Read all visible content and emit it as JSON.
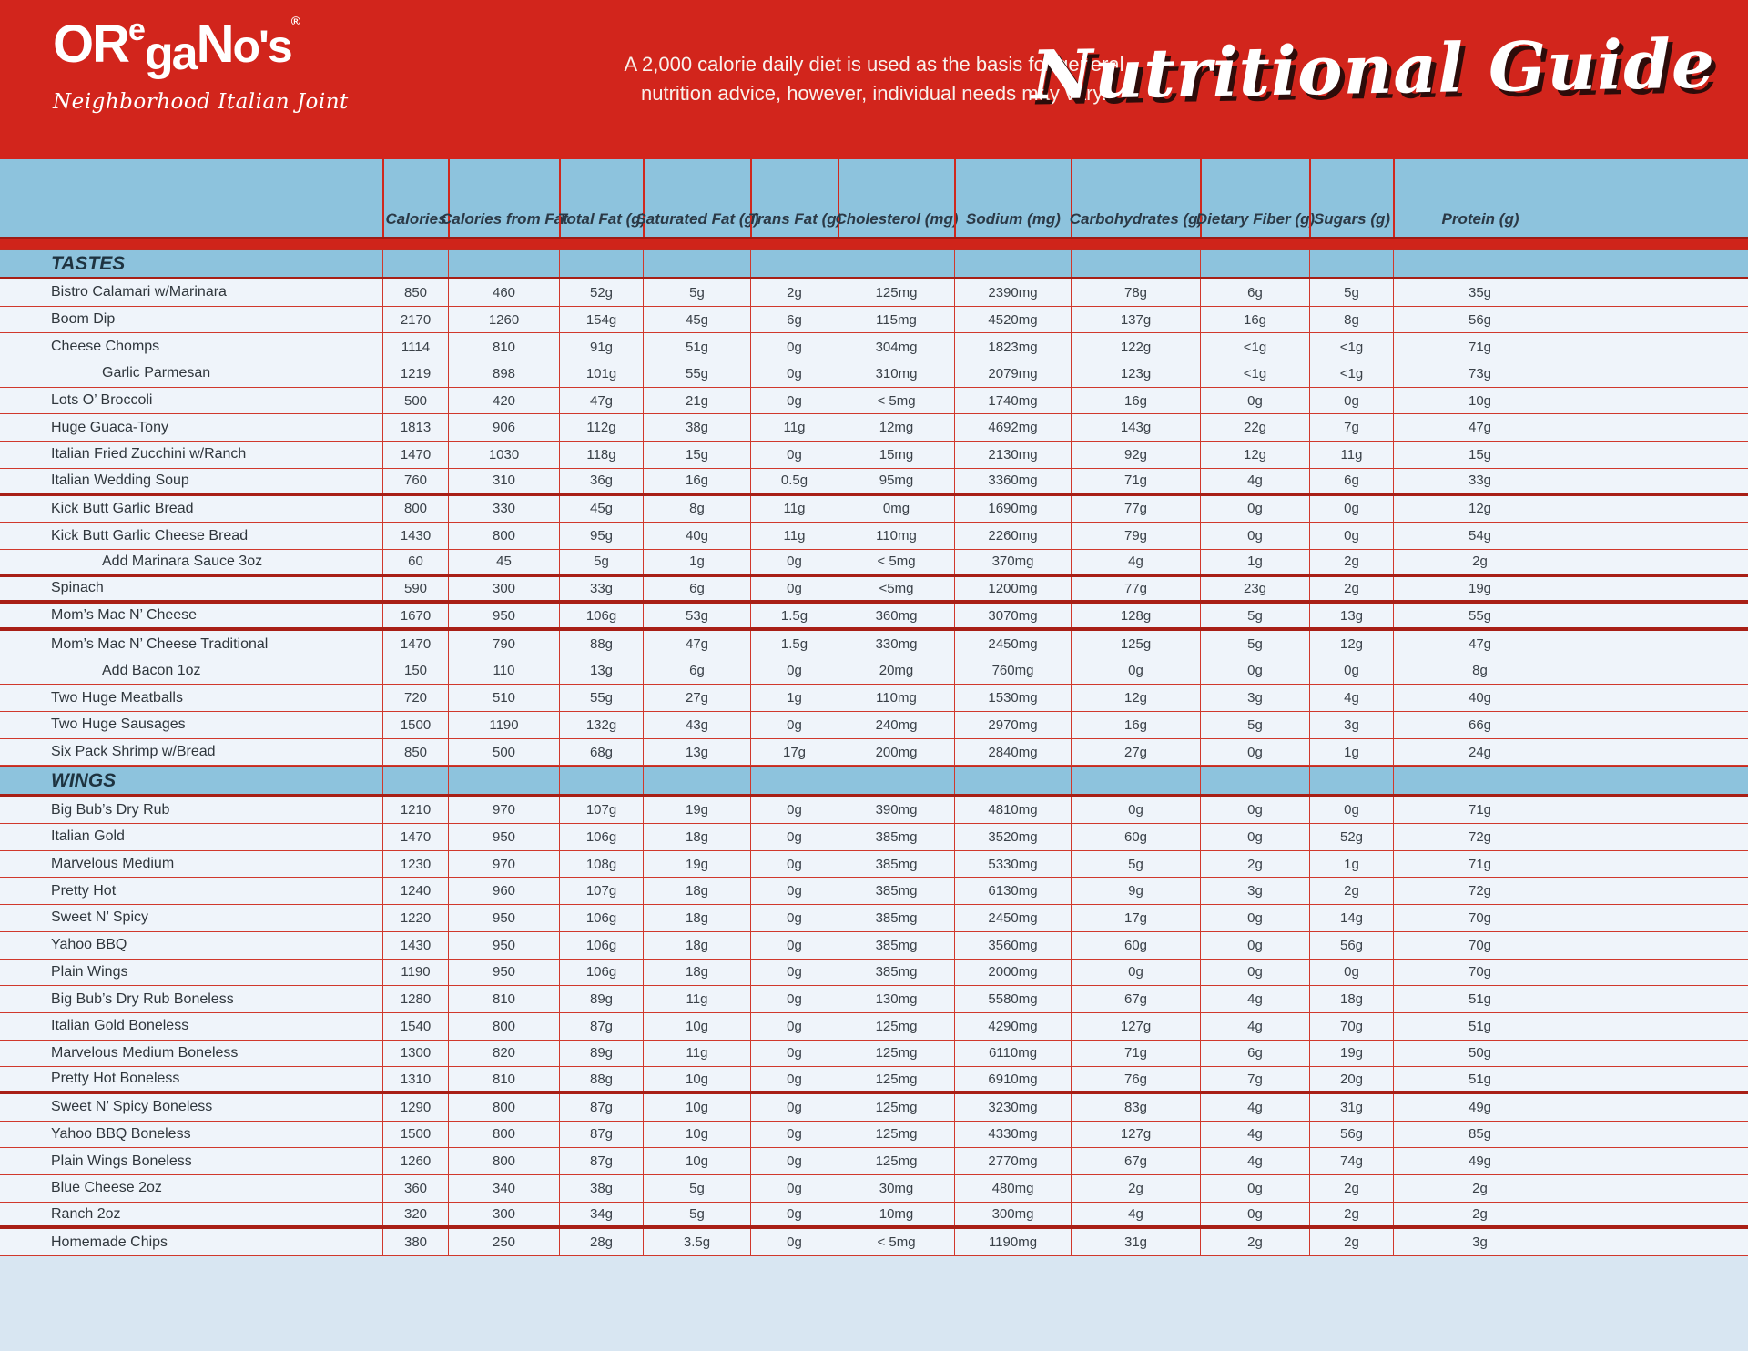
{
  "header": {
    "logo": {
      "part_or": "OR",
      "part_e": "e",
      "part_ga": "ga",
      "part_n": "N",
      "part_os": "o's",
      "registered": "®",
      "tagline": "Neighborhood Italian Joint"
    },
    "disclaimer_line1": "A 2,000 calorie daily diet is used as the basis for general",
    "disclaimer_line2": "nutrition advice, however, individual needs may vary.",
    "title": "Nutritional Guide"
  },
  "colors": {
    "masthead_red": "#d2251c",
    "band_blue": "#8dc3dd",
    "row_bg": "#eff4fa",
    "thin_line_red": "#d0382c",
    "thick_line_red": "#a81f16",
    "bar_red": "#cf241a",
    "page_bg": "#d8e6f2",
    "text_dark": "#2f363c"
  },
  "table": {
    "columns": [
      "Calories",
      "Calories from Fat",
      "Total Fat (g)",
      "Saturated Fat (g)",
      "Trans Fat (g)",
      "Cholesterol (mg)",
      "Sodium (mg)",
      "Carbohydrates (g)",
      "Dietary Fiber (g)",
      "Sugars (g)",
      "Protein (g)"
    ],
    "sections": [
      {
        "name": "TASTES",
        "rows": [
          {
            "item": "Bistro Calamari w/Marinara",
            "indent": false,
            "sep": "thin",
            "values": [
              "850",
              "460",
              "52g",
              "5g",
              "2g",
              "125mg",
              "2390mg",
              "78g",
              "6g",
              "5g",
              "35g"
            ]
          },
          {
            "item": "Boom Dip",
            "indent": false,
            "sep": "thin",
            "values": [
              "2170",
              "1260",
              "154g",
              "45g",
              "6g",
              "115mg",
              "4520mg",
              "137g",
              "16g",
              "8g",
              "56g"
            ]
          },
          {
            "item": "Cheese Chomps",
            "indent": false,
            "sep": "none",
            "values": [
              "1114",
              "810",
              "91g",
              "51g",
              "0g",
              "304mg",
              "1823mg",
              "122g",
              "<1g",
              "<1g",
              "71g"
            ]
          },
          {
            "item": "Garlic Parmesan",
            "indent": true,
            "sep": "thin",
            "values": [
              "1219",
              "898",
              "101g",
              "55g",
              "0g",
              "310mg",
              "2079mg",
              "123g",
              "<1g",
              "<1g",
              "73g"
            ]
          },
          {
            "item": "Lots O’ Broccoli",
            "indent": false,
            "sep": "thin",
            "values": [
              "500",
              "420",
              "47g",
              "21g",
              "0g",
              "< 5mg",
              "1740mg",
              "16g",
              "0g",
              "0g",
              "10g"
            ]
          },
          {
            "item": "Huge Guaca-Tony",
            "indent": false,
            "sep": "thin",
            "values": [
              "1813",
              "906",
              "112g",
              "38g",
              "11g",
              "12mg",
              "4692mg",
              "143g",
              "22g",
              "7g",
              "47g"
            ]
          },
          {
            "item": "Italian Fried Zucchini w/Ranch",
            "indent": false,
            "sep": "thin",
            "values": [
              "1470",
              "1030",
              "118g",
              "15g",
              "0g",
              "15mg",
              "2130mg",
              "92g",
              "12g",
              "11g",
              "15g"
            ]
          },
          {
            "item": "Italian Wedding Soup",
            "indent": false,
            "sep": "thick",
            "values": [
              "760",
              "310",
              "36g",
              "16g",
              "0.5g",
              "95mg",
              "3360mg",
              "71g",
              "4g",
              "6g",
              "33g"
            ]
          },
          {
            "item": "Kick Butt Garlic Bread",
            "indent": false,
            "sep": "thin",
            "values": [
              "800",
              "330",
              "45g",
              "8g",
              "11g",
              "0mg",
              "1690mg",
              "77g",
              "0g",
              "0g",
              "12g"
            ]
          },
          {
            "item": "Kick Butt Garlic Cheese Bread",
            "indent": false,
            "sep": "thin",
            "values": [
              "1430",
              "800",
              "95g",
              "40g",
              "11g",
              "110mg",
              "2260mg",
              "79g",
              "0g",
              "0g",
              "54g"
            ]
          },
          {
            "item": "Add Marinara Sauce 3oz",
            "indent": true,
            "sep": "thick",
            "values": [
              "60",
              "45",
              "5g",
              "1g",
              "0g",
              "< 5mg",
              "370mg",
              "4g",
              "1g",
              "2g",
              "2g"
            ]
          },
          {
            "item": "Spinach",
            "indent": false,
            "sep": "thick",
            "values": [
              "590",
              "300",
              "33g",
              "6g",
              "0g",
              "<5mg",
              "1200mg",
              "77g",
              "23g",
              "2g",
              "19g"
            ]
          },
          {
            "item": "Mom’s Mac N’ Cheese",
            "indent": false,
            "sep": "thick",
            "values": [
              "1670",
              "950",
              "106g",
              "53g",
              "1.5g",
              "360mg",
              "3070mg",
              "128g",
              "5g",
              "13g",
              "55g"
            ]
          },
          {
            "item": "Mom’s Mac N’ Cheese Traditional",
            "indent": false,
            "sep": "none",
            "values": [
              "1470",
              "790",
              "88g",
              "47g",
              "1.5g",
              "330mg",
              "2450mg",
              "125g",
              "5g",
              "12g",
              "47g"
            ]
          },
          {
            "item": "Add Bacon 1oz",
            "indent": true,
            "sep": "thin",
            "values": [
              "150",
              "110",
              "13g",
              "6g",
              "0g",
              "20mg",
              "760mg",
              "0g",
              "0g",
              "0g",
              "8g"
            ]
          },
          {
            "item": "Two Huge Meatballs",
            "indent": false,
            "sep": "thin",
            "values": [
              "720",
              "510",
              "55g",
              "27g",
              "1g",
              "110mg",
              "1530mg",
              "12g",
              "3g",
              "4g",
              "40g"
            ]
          },
          {
            "item": "Two Huge Sausages",
            "indent": false,
            "sep": "thin",
            "values": [
              "1500",
              "1190",
              "132g",
              "43g",
              "0g",
              "240mg",
              "2970mg",
              "16g",
              "5g",
              "3g",
              "66g"
            ]
          },
          {
            "item": "Six Pack Shrimp w/Bread",
            "indent": false,
            "sep": "thin",
            "values": [
              "850",
              "500",
              "68g",
              "13g",
              "17g",
              "200mg",
              "2840mg",
              "27g",
              "0g",
              "1g",
              "24g"
            ]
          }
        ]
      },
      {
        "name": "WINGS",
        "rows": [
          {
            "item": "Big Bub’s Dry Rub",
            "indent": false,
            "sep": "thin",
            "values": [
              "1210",
              "970",
              "107g",
              "19g",
              "0g",
              "390mg",
              "4810mg",
              "0g",
              "0g",
              "0g",
              "71g"
            ]
          },
          {
            "item": "Italian Gold",
            "indent": false,
            "sep": "thin",
            "values": [
              "1470",
              "950",
              "106g",
              "18g",
              "0g",
              "385mg",
              "3520mg",
              "60g",
              "0g",
              "52g",
              "72g"
            ]
          },
          {
            "item": "Marvelous Medium",
            "indent": false,
            "sep": "thin",
            "values": [
              "1230",
              "970",
              "108g",
              "19g",
              "0g",
              "385mg",
              "5330mg",
              "5g",
              "2g",
              "1g",
              "71g"
            ]
          },
          {
            "item": "Pretty Hot",
            "indent": false,
            "sep": "thin",
            "values": [
              "1240",
              "960",
              "107g",
              "18g",
              "0g",
              "385mg",
              "6130mg",
              "9g",
              "3g",
              "2g",
              "72g"
            ]
          },
          {
            "item": "Sweet N’ Spicy",
            "indent": false,
            "sep": "thin",
            "values": [
              "1220",
              "950",
              "106g",
              "18g",
              "0g",
              "385mg",
              "2450mg",
              "17g",
              "0g",
              "14g",
              "70g"
            ]
          },
          {
            "item": "Yahoo BBQ",
            "indent": false,
            "sep": "thin",
            "values": [
              "1430",
              "950",
              "106g",
              "18g",
              "0g",
              "385mg",
              "3560mg",
              "60g",
              "0g",
              "56g",
              "70g"
            ]
          },
          {
            "item": "Plain Wings",
            "indent": false,
            "sep": "thin",
            "values": [
              "1190",
              "950",
              "106g",
              "18g",
              "0g",
              "385mg",
              "2000mg",
              "0g",
              "0g",
              "0g",
              "70g"
            ]
          },
          {
            "item": "Big Bub’s Dry Rub Boneless",
            "indent": false,
            "sep": "thin",
            "values": [
              "1280",
              "810",
              "89g",
              "11g",
              "0g",
              "130mg",
              "5580mg",
              "67g",
              "4g",
              "18g",
              "51g"
            ]
          },
          {
            "item": "Italian Gold Boneless",
            "indent": false,
            "sep": "thin",
            "values": [
              "1540",
              "800",
              "87g",
              "10g",
              "0g",
              "125mg",
              "4290mg",
              "127g",
              "4g",
              "70g",
              "51g"
            ]
          },
          {
            "item": "Marvelous Medium Boneless",
            "indent": false,
            "sep": "thin",
            "values": [
              "1300",
              "820",
              "89g",
              "11g",
              "0g",
              "125mg",
              "6110mg",
              "71g",
              "6g",
              "19g",
              "50g"
            ]
          },
          {
            "item": "Pretty Hot Boneless",
            "indent": false,
            "sep": "thick",
            "values": [
              "1310",
              "810",
              "88g",
              "10g",
              "0g",
              "125mg",
              "6910mg",
              "76g",
              "7g",
              "20g",
              "51g"
            ]
          },
          {
            "item": "Sweet N’ Spicy Boneless",
            "indent": false,
            "sep": "thin",
            "values": [
              "1290",
              "800",
              "87g",
              "10g",
              "0g",
              "125mg",
              "3230mg",
              "83g",
              "4g",
              "31g",
              "49g"
            ]
          },
          {
            "item": "Yahoo BBQ Boneless",
            "indent": false,
            "sep": "thin",
            "values": [
              "1500",
              "800",
              "87g",
              "10g",
              "0g",
              "125mg",
              "4330mg",
              "127g",
              "4g",
              "56g",
              "85g"
            ]
          },
          {
            "item": "Plain Wings Boneless",
            "indent": false,
            "sep": "thin",
            "values": [
              "1260",
              "800",
              "87g",
              "10g",
              "0g",
              "125mg",
              "2770mg",
              "67g",
              "4g",
              "74g",
              "49g"
            ]
          },
          {
            "item": "Blue Cheese 2oz",
            "indent": false,
            "sep": "thin",
            "values": [
              "360",
              "340",
              "38g",
              "5g",
              "0g",
              "30mg",
              "480mg",
              "2g",
              "0g",
              "2g",
              "2g"
            ]
          },
          {
            "item": "Ranch 2oz",
            "indent": false,
            "sep": "thick",
            "values": [
              "320",
              "300",
              "34g",
              "5g",
              "0g",
              "10mg",
              "300mg",
              "4g",
              "0g",
              "2g",
              "2g"
            ]
          },
          {
            "item": "Homemade Chips",
            "indent": false,
            "sep": "thin",
            "values": [
              "380",
              "250",
              "28g",
              "3.5g",
              "0g",
              "< 5mg",
              "1190mg",
              "31g",
              "2g",
              "2g",
              "3g"
            ]
          }
        ]
      }
    ]
  }
}
